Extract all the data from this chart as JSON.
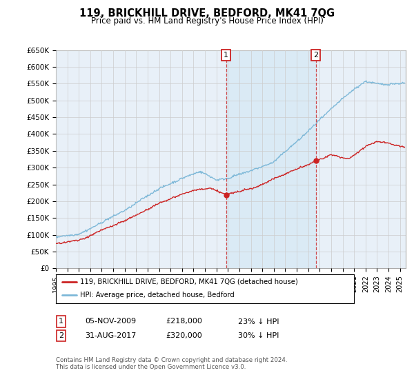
{
  "title": "119, BRICKHILL DRIVE, BEDFORD, MK41 7QG",
  "subtitle": "Price paid vs. HM Land Registry's House Price Index (HPI)",
  "x_start": 1995.0,
  "x_end": 2025.5,
  "y_min": 0,
  "y_max": 650000,
  "y_ticks": [
    0,
    50000,
    100000,
    150000,
    200000,
    250000,
    300000,
    350000,
    400000,
    450000,
    500000,
    550000,
    600000,
    650000
  ],
  "y_tick_labels": [
    "£0",
    "£50K",
    "£100K",
    "£150K",
    "£200K",
    "£250K",
    "£300K",
    "£350K",
    "£400K",
    "£450K",
    "£500K",
    "£550K",
    "£600K",
    "£650K"
  ],
  "sale1_x": 2009.84,
  "sale1_y": 218000,
  "sale1_label": "1",
  "sale2_x": 2017.66,
  "sale2_y": 320000,
  "sale2_label": "2",
  "hpi_color": "#7db8d8",
  "price_color": "#cc2222",
  "vline_color": "#cc2222",
  "annotation_box_color": "#cc2222",
  "shade_color": "#daeaf5",
  "grid_color": "#cccccc",
  "background_color": "#e8f0f8",
  "legend_line1": "119, BRICKHILL DRIVE, BEDFORD, MK41 7QG (detached house)",
  "legend_line2": "HPI: Average price, detached house, Bedford",
  "table_row1_num": "1",
  "table_row1_date": "05-NOV-2009",
  "table_row1_price": "£218,000",
  "table_row1_hpi": "23% ↓ HPI",
  "table_row2_num": "2",
  "table_row2_date": "31-AUG-2017",
  "table_row2_price": "£320,000",
  "table_row2_hpi": "30% ↓ HPI",
  "footer": "Contains HM Land Registry data © Crown copyright and database right 2024.\nThis data is licensed under the Open Government Licence v3.0.",
  "x_tick_years": [
    1995,
    1996,
    1997,
    1998,
    1999,
    2000,
    2001,
    2002,
    2003,
    2004,
    2005,
    2006,
    2007,
    2008,
    2009,
    2010,
    2011,
    2012,
    2013,
    2014,
    2015,
    2016,
    2017,
    2018,
    2019,
    2020,
    2021,
    2022,
    2023,
    2024,
    2025
  ]
}
